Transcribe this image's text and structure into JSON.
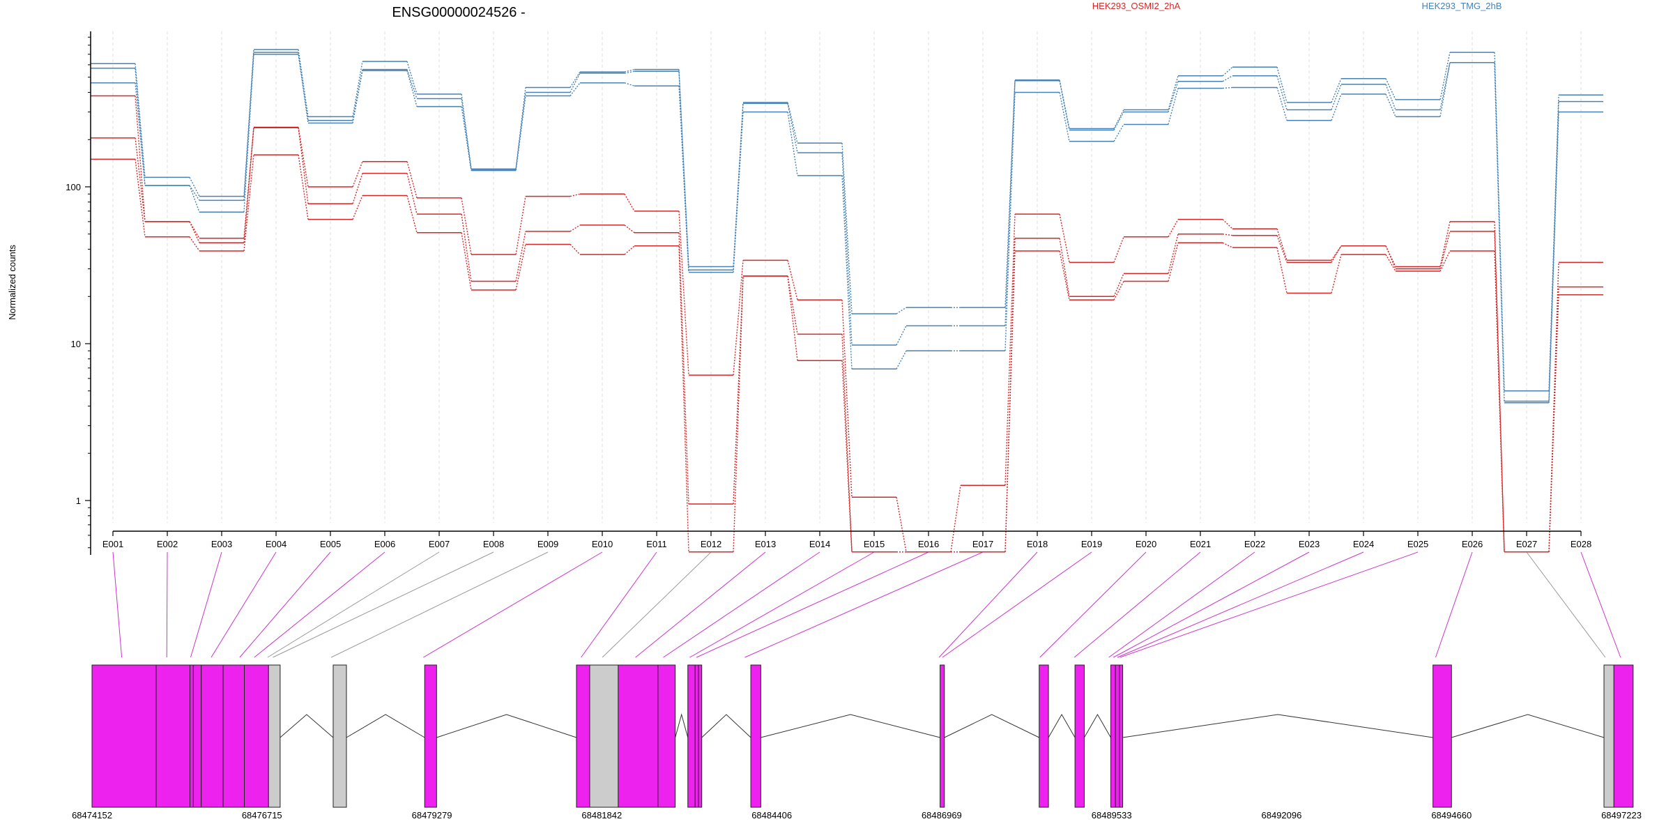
{
  "chart_data": {
    "type": "line",
    "title": "ENSG00000024526 -",
    "ylabel": "Normalized counts",
    "yscale": "log",
    "y_ticks": [
      1,
      10,
      100
    ],
    "ylim": [
      0.45,
      1000
    ],
    "grid": "vertical dashed",
    "legend_placement": "top",
    "categories": [
      "E001",
      "E002",
      "E003",
      "E004",
      "E005",
      "E006",
      "E007",
      "E008",
      "E009",
      "E010",
      "E011",
      "E012",
      "E013",
      "E014",
      "E015",
      "E016",
      "E017",
      "E018",
      "E019",
      "E020",
      "E021",
      "E022",
      "E023",
      "E024",
      "E025",
      "E026",
      "E027",
      "E028"
    ],
    "series": [
      {
        "name": "HEK293_OSMI2_2hA",
        "color": "#d62728",
        "values": [
          380,
          60,
          47,
          240,
          100,
          145,
          85,
          37,
          87,
          90,
          70,
          6.3,
          34,
          19,
          1.05,
          0.47,
          1.25,
          67,
          33,
          48,
          62,
          54,
          34,
          42,
          31,
          60,
          0.47,
          33
        ]
      },
      {
        "group": "HEK293_OSMI2_2hA",
        "color": "#d62728",
        "values": [
          205,
          60,
          44,
          238,
          78,
          122,
          67,
          25,
          52,
          57,
          51,
          0.95,
          27,
          11.5,
          0.47,
          0.47,
          0.47,
          47,
          20,
          28,
          50,
          49,
          33,
          42,
          30,
          52,
          0.47,
          23
        ]
      },
      {
        "group": "HEK293_OSMI2_2hA",
        "color": "#d62728",
        "values": [
          150,
          48,
          39,
          160,
          62,
          88,
          51,
          22,
          43,
          37,
          42,
          0.47,
          27,
          7.8,
          0.47,
          0.47,
          0.47,
          39,
          19,
          25,
          44,
          41,
          21,
          37,
          29,
          39,
          0.47,
          20.5
        ]
      },
      {
        "name": "HEK293_TMG_2hB",
        "color": "#4682b4",
        "values": [
          610,
          115,
          87,
          750,
          280,
          630,
          390,
          130,
          430,
          540,
          560,
          31,
          345,
          190,
          15.5,
          17,
          17,
          480,
          235,
          310,
          510,
          580,
          345,
          490,
          360,
          720,
          5,
          385
        ]
      },
      {
        "group": "HEK293_TMG_2hB",
        "color": "#4682b4",
        "values": [
          570,
          102,
          82,
          720,
          265,
          560,
          365,
          128,
          400,
          530,
          545,
          29.5,
          340,
          165,
          9.8,
          13,
          13,
          475,
          230,
          300,
          470,
          510,
          310,
          450,
          310,
          620,
          4.3,
          350
        ]
      },
      {
        "group": "HEK293_TMG_2hB",
        "color": "#4682b4",
        "values": [
          460,
          102,
          69,
          700,
          255,
          550,
          325,
          127,
          380,
          460,
          440,
          28.5,
          300,
          118,
          6.9,
          9,
          9,
          400,
          195,
          250,
          425,
          430,
          265,
          390,
          280,
          620,
          4.2,
          300
        ]
      }
    ],
    "genomic_axis": {
      "tick_labels": [
        "68474152",
        "68476715",
        "68479279",
        "68481842",
        "68484406",
        "68486969",
        "68489533",
        "68492096",
        "68494660",
        "68497223"
      ],
      "range": [
        68474152,
        68497223
      ],
      "exon_color": "#ee22ee",
      "other_color": "#cccccc",
      "features": [
        {
          "s": 68474152,
          "e": 68475120,
          "type": "exon"
        },
        {
          "s": 68475120,
          "e": 68475630,
          "type": "exon"
        },
        {
          "s": 68475630,
          "e": 68475680,
          "type": "exon"
        },
        {
          "s": 68475680,
          "e": 68475800,
          "type": "exon"
        },
        {
          "s": 68475800,
          "e": 68476130,
          "type": "exon"
        },
        {
          "s": 68476130,
          "e": 68476450,
          "type": "exon"
        },
        {
          "s": 68476450,
          "e": 68476815,
          "type": "exon"
        },
        {
          "s": 68476815,
          "e": 68476990,
          "type": "other"
        },
        {
          "s": 68477790,
          "e": 68477990,
          "type": "other"
        },
        {
          "s": 68479170,
          "e": 68479350,
          "type": "exon"
        },
        {
          "s": 68481460,
          "e": 68481660,
          "type": "exon"
        },
        {
          "s": 68481660,
          "e": 68482090,
          "type": "other"
        },
        {
          "s": 68482090,
          "e": 68482690,
          "type": "exon"
        },
        {
          "s": 68482690,
          "e": 68482950,
          "type": "exon"
        },
        {
          "s": 68483140,
          "e": 68483250,
          "type": "exon"
        },
        {
          "s": 68483250,
          "e": 68483300,
          "type": "exon"
        },
        {
          "s": 68483300,
          "e": 68483350,
          "type": "exon"
        },
        {
          "s": 68484090,
          "e": 68484240,
          "type": "exon"
        },
        {
          "s": 68486945,
          "e": 68487010,
          "type": "exon"
        },
        {
          "s": 68488440,
          "e": 68488580,
          "type": "exon"
        },
        {
          "s": 68488980,
          "e": 68489120,
          "type": "exon"
        },
        {
          "s": 68489520,
          "e": 68489590,
          "type": "exon"
        },
        {
          "s": 68489590,
          "e": 68489650,
          "type": "exon"
        },
        {
          "s": 68489650,
          "e": 68489700,
          "type": "exon"
        },
        {
          "s": 68494380,
          "e": 68494660,
          "type": "exon"
        },
        {
          "s": 68496960,
          "e": 68497110,
          "type": "other"
        },
        {
          "s": 68497110,
          "e": 68497400,
          "type": "exon"
        }
      ],
      "exon_map": [
        {
          "bin": "E001",
          "pos": 68474600,
          "type": "exon"
        },
        {
          "bin": "E002",
          "pos": 68475280,
          "type": "exon"
        },
        {
          "bin": "E003",
          "pos": 68475640,
          "type": "exon"
        },
        {
          "bin": "E004",
          "pos": 68475950,
          "type": "exon"
        },
        {
          "bin": "E005",
          "pos": 68476380,
          "type": "exon"
        },
        {
          "bin": "E006",
          "pos": 68476600,
          "type": "exon"
        },
        {
          "bin": "E007",
          "pos": 68476800,
          "type": "other"
        },
        {
          "bin": "E008",
          "pos": 68476880,
          "type": "other"
        },
        {
          "bin": "E009",
          "pos": 68477760,
          "type": "other"
        },
        {
          "bin": "E010",
          "pos": 68479150,
          "type": "exon"
        },
        {
          "bin": "E011",
          "pos": 68481530,
          "type": "exon"
        },
        {
          "bin": "E012",
          "pos": 68481850,
          "type": "other"
        },
        {
          "bin": "E013",
          "pos": 68482350,
          "type": "exon"
        },
        {
          "bin": "E014",
          "pos": 68482770,
          "type": "exon"
        },
        {
          "bin": "E015",
          "pos": 68483170,
          "type": "exon"
        },
        {
          "bin": "E016",
          "pos": 68483270,
          "type": "exon"
        },
        {
          "bin": "E017",
          "pos": 68484000,
          "type": "exon"
        },
        {
          "bin": "E018",
          "pos": 68486930,
          "type": "exon"
        },
        {
          "bin": "E019",
          "pos": 68486980,
          "type": "exon"
        },
        {
          "bin": "E020",
          "pos": 68488450,
          "type": "exon"
        },
        {
          "bin": "E021",
          "pos": 68488970,
          "type": "exon"
        },
        {
          "bin": "E022",
          "pos": 68489490,
          "type": "exon"
        },
        {
          "bin": "E023",
          "pos": 68489560,
          "type": "exon"
        },
        {
          "bin": "E024",
          "pos": 68489620,
          "type": "exon"
        },
        {
          "bin": "E025",
          "pos": 68489660,
          "type": "exon"
        },
        {
          "bin": "E026",
          "pos": 68494420,
          "type": "exon"
        },
        {
          "bin": "E027",
          "pos": 68496980,
          "type": "other"
        },
        {
          "bin": "E028",
          "pos": 68497210,
          "type": "exon"
        }
      ]
    }
  }
}
